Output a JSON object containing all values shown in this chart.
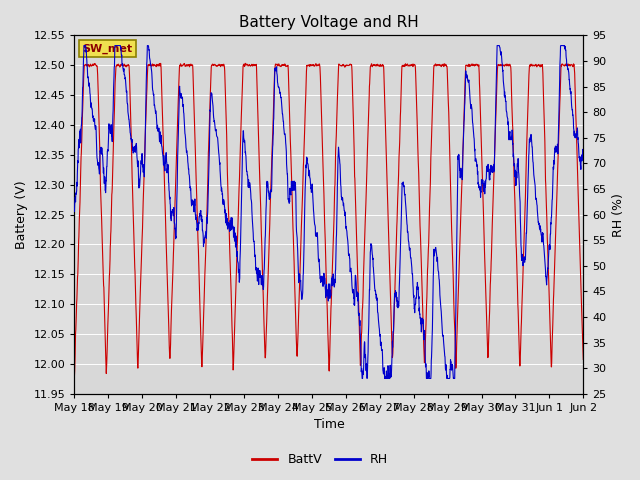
{
  "title": "Battery Voltage and RH",
  "xlabel": "Time",
  "ylabel_left": "Battery (V)",
  "ylabel_right": "RH (%)",
  "station_label": "SW_met",
  "ylim_left": [
    11.95,
    12.55
  ],
  "ylim_right": [
    25,
    95
  ],
  "yticks_left": [
    11.95,
    12.0,
    12.05,
    12.1,
    12.15,
    12.2,
    12.25,
    12.3,
    12.35,
    12.4,
    12.45,
    12.5,
    12.55
  ],
  "yticks_right": [
    25,
    30,
    35,
    40,
    45,
    50,
    55,
    60,
    65,
    70,
    75,
    80,
    85,
    90,
    95
  ],
  "xtick_labels": [
    "May 18",
    "May 19",
    "May 20",
    "May 21",
    "May 22",
    "May 23",
    "May 24",
    "May 25",
    "May 26",
    "May 27",
    "May 28",
    "May 29",
    "May 30",
    "May 31",
    "Jun 1",
    "Jun 2"
  ],
  "color_battv": "#cc0000",
  "color_rh": "#0000cc",
  "legend_labels": [
    "BattV",
    "RH"
  ],
  "bg_color": "#e0e0e0",
  "plot_bg_color": "#d8d8d8",
  "title_fontsize": 11,
  "label_fontsize": 9,
  "tick_fontsize": 8
}
